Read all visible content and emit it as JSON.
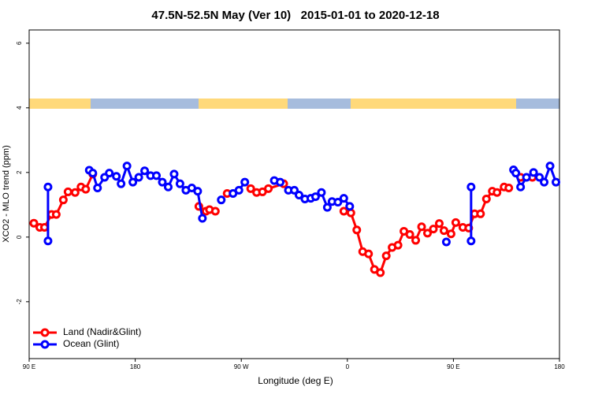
{
  "chart_data": {
    "type": "line",
    "title": "47.5N-52.5N May (Ver 10)   2015-01-01 to 2020-12-18",
    "x_label": "Longitude (deg E)",
    "y_label": "XCO2 - MLO trend (ppm)",
    "xlim": [
      90,
      540
    ],
    "ylim": [
      -3.76,
      6.41
    ],
    "xticks": [
      {
        "value": 90,
        "label": "90 E"
      },
      180,
      {
        "value": 270,
        "label": "90 W"
      },
      {
        "value": 360,
        "label": "0"
      },
      {
        "value": 450,
        "label": "90 E"
      },
      {
        "value": 540,
        "label": "180"
      }
    ],
    "yticks": [
      -2,
      0,
      2,
      4,
      6
    ],
    "legend": "bottomleft",
    "series": [
      {
        "name": "Land (Nadir&Glint)",
        "color": "#ff0000",
        "x": [
          94,
          99,
          103,
          109,
          113,
          119,
          123,
          129,
          134,
          138,
          144,
          190,
          234,
          240,
          243,
          248,
          253,
          258,
          268,
          278,
          283,
          288,
          293,
          306,
          330,
          357,
          363,
          368,
          373,
          378,
          383,
          388,
          393,
          398,
          403,
          408,
          413,
          418,
          423,
          428,
          433,
          438,
          442,
          448,
          452,
          458,
          463,
          468,
          473,
          478,
          483,
          487,
          493,
          497,
          502,
          507,
          512,
          517
        ],
        "values": [
          0.43,
          0.3,
          0.3,
          0.7,
          0.7,
          1.15,
          1.4,
          1.38,
          1.55,
          1.48,
          1.95,
          null,
          0.95,
          0.8,
          0.85,
          0.8,
          null,
          1.35,
          null,
          1.5,
          1.38,
          1.4,
          1.5,
          1.65,
          null,
          0.8,
          0.75,
          0.22,
          -0.45,
          -0.52,
          -1.0,
          -1.1,
          -0.58,
          -0.32,
          -0.25,
          0.18,
          0.08,
          -0.1,
          0.32,
          0.12,
          0.25,
          0.42,
          0.2,
          0.1,
          0.45,
          0.3,
          0.28,
          0.72,
          0.72,
          1.18,
          1.42,
          1.38,
          1.55,
          1.52,
          null,
          1.85,
          null,
          1.85
        ]
      },
      {
        "name": "Ocean (Glint)",
        "color": "#0000ff",
        "x": [
          106,
          106,
          125,
          141,
          144,
          148,
          154,
          158,
          164,
          168,
          173,
          178,
          183,
          188,
          193,
          198,
          203,
          208,
          213,
          218,
          223,
          228,
          233,
          237,
          245,
          253,
          258,
          263,
          268,
          273,
          285,
          298,
          303,
          306,
          310,
          315,
          319,
          324,
          329,
          333,
          338,
          343,
          347,
          352,
          357,
          362,
          400,
          444,
          455,
          465,
          465,
          480,
          501,
          503,
          507,
          512,
          518,
          523,
          527,
          532,
          537
        ],
        "values": [
          1.55,
          -0.12,
          null,
          2.07,
          1.98,
          1.52,
          1.85,
          1.98,
          1.88,
          1.65,
          2.2,
          1.7,
          1.85,
          2.05,
          1.9,
          1.9,
          1.7,
          1.55,
          1.95,
          1.65,
          1.45,
          1.52,
          1.42,
          0.58,
          null,
          1.15,
          null,
          1.35,
          1.45,
          1.7,
          null,
          1.75,
          1.7,
          null,
          1.45,
          1.45,
          1.3,
          1.18,
          1.2,
          1.25,
          1.38,
          0.92,
          1.1,
          1.08,
          1.2,
          0.95,
          null,
          -0.15,
          null,
          1.55,
          -0.12,
          null,
          2.08,
          1.98,
          1.55,
          1.85,
          2.0,
          1.85,
          1.7,
          2.2,
          1.7
        ]
      }
    ]
  }
}
